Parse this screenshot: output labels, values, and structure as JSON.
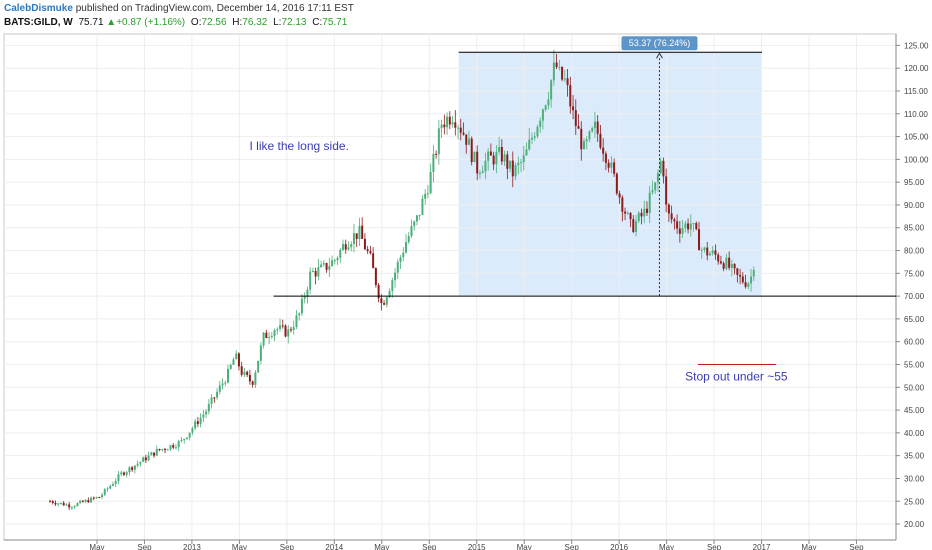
{
  "header": {
    "author": "CalebDismuke",
    "published": "published on TradingView.com, December 14, 2016 17:11 EST",
    "symbol": "BATS:GILD, W",
    "last": "75.71",
    "change": "+0.87 (+1.16%)",
    "o_label": "O:",
    "o_value": "72.56",
    "h_label": "H:",
    "h_value": "76.32",
    "l_label": "L:",
    "l_value": "72.13",
    "c_label": "C:",
    "c_value": "75.71",
    "up_color": "#2e9e2e"
  },
  "chart_data": {
    "type": "candlestick",
    "symbol": "BATS:GILD",
    "interval": "W",
    "x_tick_labels": [
      "May",
      "Sep",
      "2013",
      "May",
      "Sep",
      "2014",
      "May",
      "Sep",
      "2015",
      "May",
      "Sep",
      "2016",
      "May",
      "Sep",
      "2017",
      "May",
      "Sep"
    ],
    "y_tick_labels": [
      "20.00",
      "25.00",
      "30.00",
      "35.00",
      "40.00",
      "45.00",
      "50.00",
      "55.00",
      "60.00",
      "65.00",
      "70.00",
      "75.00",
      "80.00",
      "85.00",
      "90.00",
      "95.00",
      "100.00",
      "105.00",
      "110.00",
      "115.00",
      "120.00",
      "125.00"
    ],
    "ylim": [
      16.5,
      127.5
    ],
    "grid": true,
    "up_color": "#4caf7a",
    "down_color": "#8b1a1a",
    "price_path": [
      [
        2012.0,
        25
      ],
      [
        2012.15,
        24
      ],
      [
        2012.35,
        26
      ],
      [
        2012.5,
        31
      ],
      [
        2012.65,
        34
      ],
      [
        2012.75,
        36
      ],
      [
        2012.92,
        38
      ],
      [
        2013.1,
        45
      ],
      [
        2013.25,
        53
      ],
      [
        2013.3,
        57
      ],
      [
        2013.35,
        53
      ],
      [
        2013.42,
        51
      ],
      [
        2013.5,
        61
      ],
      [
        2013.58,
        63
      ],
      [
        2013.67,
        62
      ],
      [
        2013.75,
        66
      ],
      [
        2013.83,
        75
      ],
      [
        2013.92,
        76
      ],
      [
        2014.0,
        78
      ],
      [
        2014.08,
        82
      ],
      [
        2014.17,
        84
      ],
      [
        2014.25,
        78
      ],
      [
        2014.33,
        68
      ],
      [
        2014.42,
        75
      ],
      [
        2014.5,
        82
      ],
      [
        2014.58,
        87
      ],
      [
        2014.67,
        96
      ],
      [
        2014.75,
        108
      ],
      [
        2014.83,
        110
      ],
      [
        2014.92,
        105
      ],
      [
        2015.0,
        98
      ],
      [
        2015.08,
        100
      ],
      [
        2015.17,
        101
      ],
      [
        2015.25,
        97
      ],
      [
        2015.33,
        100
      ],
      [
        2015.42,
        108
      ],
      [
        2015.5,
        115
      ],
      [
        2015.55,
        121
      ],
      [
        2015.58,
        118
      ],
      [
        2015.62,
        117
      ],
      [
        2015.67,
        110
      ],
      [
        2015.75,
        102
      ],
      [
        2015.83,
        107
      ],
      [
        2015.92,
        100
      ],
      [
        2016.0,
        92
      ],
      [
        2016.08,
        85
      ],
      [
        2016.17,
        88
      ],
      [
        2016.25,
        94
      ],
      [
        2016.3,
        101
      ],
      [
        2016.33,
        88
      ],
      [
        2016.42,
        85
      ],
      [
        2016.5,
        86
      ],
      [
        2016.58,
        80
      ],
      [
        2016.67,
        79
      ],
      [
        2016.75,
        77
      ],
      [
        2016.83,
        74
      ],
      [
        2016.9,
        73
      ],
      [
        2016.95,
        75.71
      ]
    ],
    "measure": {
      "x_range": [
        2014.87,
        2017.0
      ],
      "y_range": [
        70,
        123.5
      ],
      "arrow_x": 2016.28,
      "label": "53.37 (76.24%)",
      "fill_color": "#dcebfb",
      "line_color": "#000000",
      "label_bg": "#5e95c8"
    },
    "support_line": {
      "y": 70,
      "x_start": 2013.57
    },
    "stop_line": {
      "y": 55,
      "x_range": [
        2016.55,
        2017.1
      ],
      "color": "#b22222"
    },
    "annotations": [
      {
        "text": "I like the long side.",
        "x": 2013.75,
        "y": 102,
        "color": "#3c3cb4"
      },
      {
        "text": "Stop out under ~55",
        "x": 2016.82,
        "y": 51.5,
        "color": "#3c3cb4"
      }
    ]
  }
}
